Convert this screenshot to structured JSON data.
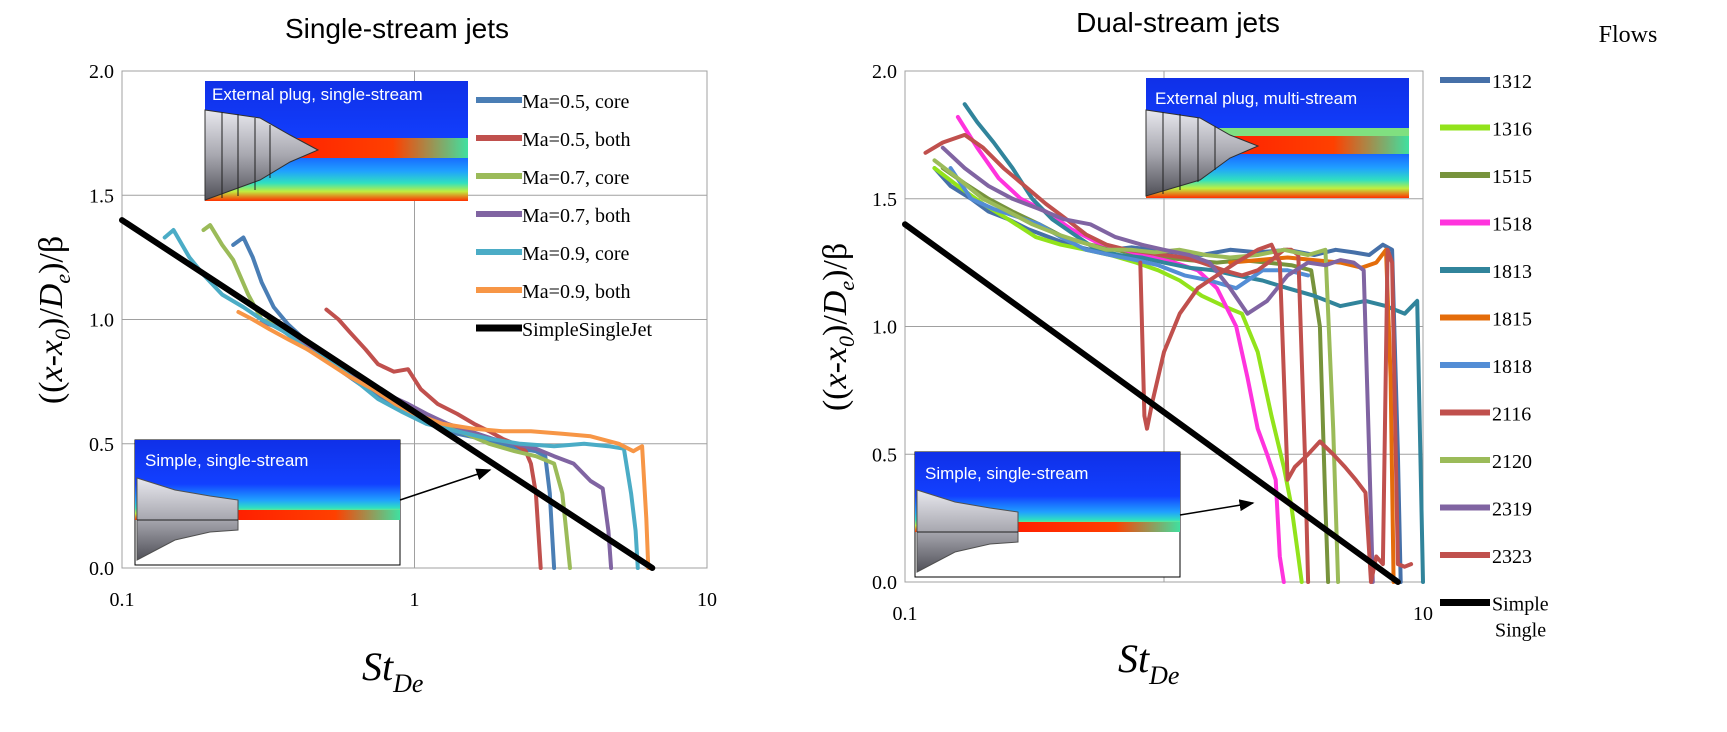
{
  "chart_data": [
    {
      "type": "line",
      "title": "Single-stream jets",
      "xlabel_main": "St",
      "xlabel_sub": "De",
      "ylabel": "((x-x0)/De)/β",
      "xscale": "log",
      "xlim": [
        0.1,
        10
      ],
      "ylim": [
        0,
        2
      ],
      "x_ticks": [
        "0.1",
        "1",
        "10"
      ],
      "y_ticks": [
        "0.0",
        "0.5",
        "1.0",
        "1.5",
        "2.0"
      ],
      "grid": true,
      "legend_position": "top-right",
      "insets": [
        {
          "label": "External plug, single-stream",
          "position": "top-center"
        },
        {
          "label": "Simple, single-stream",
          "position": "bottom-left"
        }
      ],
      "series": [
        {
          "name": "Ma=0.5, core",
          "color": "#4a7eb5",
          "x": [
            0.24,
            0.26,
            0.28,
            0.3,
            0.33,
            0.37,
            0.42,
            0.48,
            0.55,
            0.65,
            0.78,
            0.95,
            1.15,
            1.4,
            1.7,
            2.0,
            2.3,
            2.6,
            2.8,
            2.9,
            2.95,
            3.0
          ],
          "y": [
            1.3,
            1.33,
            1.25,
            1.15,
            1.05,
            0.98,
            0.92,
            0.85,
            0.8,
            0.74,
            0.68,
            0.62,
            0.58,
            0.54,
            0.52,
            0.5,
            0.48,
            0.47,
            0.45,
            0.3,
            0.15,
            0.0
          ]
        },
        {
          "name": "Ma=0.5, both",
          "color": "#c0504d",
          "x": [
            0.5,
            0.55,
            0.6,
            0.68,
            0.75,
            0.85,
            0.95,
            1.05,
            1.2,
            1.4,
            1.6,
            1.8,
            2.0,
            2.2,
            2.4,
            2.5,
            2.6,
            2.65,
            2.7
          ],
          "y": [
            1.04,
            1.0,
            0.95,
            0.88,
            0.82,
            0.79,
            0.8,
            0.72,
            0.66,
            0.62,
            0.58,
            0.55,
            0.52,
            0.5,
            0.47,
            0.42,
            0.3,
            0.15,
            0.0
          ]
        },
        {
          "name": "Ma=0.7, core",
          "color": "#9bbb59",
          "x": [
            0.19,
            0.2,
            0.22,
            0.24,
            0.27,
            0.3,
            0.34,
            0.4,
            0.48,
            0.58,
            0.7,
            0.85,
            1.0,
            1.2,
            1.5,
            1.8,
            2.2,
            2.6,
            3.0,
            3.2,
            3.3,
            3.4
          ],
          "y": [
            1.36,
            1.38,
            1.3,
            1.24,
            1.1,
            1.0,
            0.98,
            0.92,
            0.85,
            0.8,
            0.73,
            0.68,
            0.64,
            0.58,
            0.54,
            0.5,
            0.47,
            0.45,
            0.42,
            0.3,
            0.15,
            0.0
          ]
        },
        {
          "name": "Ma=0.7, both",
          "color": "#8064a2",
          "x": [
            0.3,
            0.34,
            0.38,
            0.43,
            0.5,
            0.58,
            0.68,
            0.8,
            0.95,
            1.1,
            1.3,
            1.55,
            1.85,
            2.2,
            2.6,
            3.0,
            3.5,
            4.0,
            4.4,
            4.6,
            4.7
          ],
          "y": [
            0.99,
            0.97,
            0.93,
            0.9,
            0.85,
            0.8,
            0.75,
            0.7,
            0.66,
            0.62,
            0.58,
            0.55,
            0.52,
            0.5,
            0.48,
            0.45,
            0.42,
            0.35,
            0.32,
            0.15,
            0.0
          ]
        },
        {
          "name": "Ma=0.9, core",
          "color": "#4bacc6",
          "x": [
            0.14,
            0.15,
            0.17,
            0.19,
            0.22,
            0.26,
            0.3,
            0.36,
            0.43,
            0.52,
            0.62,
            0.75,
            0.9,
            1.1,
            1.4,
            1.8,
            2.3,
            3.0,
            3.8,
            4.6,
            5.2,
            5.5,
            5.7,
            5.8
          ],
          "y": [
            1.33,
            1.36,
            1.25,
            1.18,
            1.1,
            1.05,
            1.0,
            0.95,
            0.88,
            0.83,
            0.76,
            0.68,
            0.63,
            0.58,
            0.55,
            0.52,
            0.5,
            0.49,
            0.5,
            0.49,
            0.48,
            0.3,
            0.15,
            0.0
          ]
        },
        {
          "name": "Ma=0.9, both",
          "color": "#f79646",
          "x": [
            0.25,
            0.28,
            0.32,
            0.37,
            0.43,
            0.5,
            0.6,
            0.72,
            0.86,
            1.0,
            1.25,
            1.6,
            2.0,
            2.5,
            3.2,
            4.0,
            5.0,
            5.6,
            6.0,
            6.2,
            6.3
          ],
          "y": [
            1.03,
            1.0,
            0.96,
            0.92,
            0.88,
            0.83,
            0.77,
            0.72,
            0.66,
            0.62,
            0.58,
            0.56,
            0.55,
            0.55,
            0.54,
            0.53,
            0.5,
            0.47,
            0.49,
            0.2,
            0.0
          ]
        },
        {
          "name": "SimpleSingleJet",
          "color": "#000000",
          "x": [
            0.1,
            6.5
          ],
          "y": [
            1.4,
            0.0
          ]
        }
      ]
    },
    {
      "type": "line",
      "title": "Dual-stream jets",
      "xlabel_main": "St",
      "xlabel_sub": "De",
      "ylabel": "((x-x0)/De)/β",
      "xscale": "log",
      "xlim": [
        0.1,
        10
      ],
      "ylim": [
        0,
        2
      ],
      "x_ticks": [
        "0.1",
        "10"
      ],
      "y_ticks": [
        "0.0",
        "0.5",
        "1.0",
        "1.5",
        "2.0"
      ],
      "grid": true,
      "legend_title": "Flows",
      "legend_position": "right",
      "insets": [
        {
          "label": "External plug, multi-stream",
          "position": "top-right"
        },
        {
          "label": "Simple, single-stream",
          "position": "bottom-left"
        }
      ],
      "series": [
        {
          "name": "1312",
          "color": "#4670a8",
          "x": [
            0.13,
            0.15,
            0.18,
            0.21,
            0.25,
            0.3,
            0.36,
            0.43,
            0.52,
            0.62,
            0.75,
            0.9,
            1.1,
            1.4,
            1.8,
            2.3,
            3.0,
            3.8,
            4.6,
            5.4,
            6.2,
            7.0,
            7.6,
            8.0,
            8.2
          ],
          "y": [
            1.62,
            1.55,
            1.5,
            1.45,
            1.42,
            1.38,
            1.35,
            1.32,
            1.3,
            1.3,
            1.31,
            1.3,
            1.29,
            1.28,
            1.3,
            1.29,
            1.3,
            1.28,
            1.3,
            1.29,
            1.28,
            1.32,
            1.3,
            0.5,
            0.0
          ]
        },
        {
          "name": "1316",
          "color": "#92e31b",
          "x": [
            0.13,
            0.16,
            0.2,
            0.25,
            0.32,
            0.4,
            0.5,
            0.62,
            0.78,
            0.95,
            1.15,
            1.4,
            1.7,
            2.0,
            2.3,
            2.6,
            2.9,
            3.1,
            3.3,
            3.4
          ],
          "y": [
            1.62,
            1.55,
            1.48,
            1.42,
            1.35,
            1.32,
            1.3,
            1.28,
            1.25,
            1.22,
            1.18,
            1.12,
            1.08,
            1.05,
            0.9,
            0.65,
            0.45,
            0.3,
            0.1,
            0.0
          ]
        },
        {
          "name": "1515",
          "color": "#77933c",
          "x": [
            0.14,
            0.17,
            0.21,
            0.26,
            0.33,
            0.41,
            0.52,
            0.65,
            0.82,
            1.0,
            1.25,
            1.6,
            2.0,
            2.5,
            3.1,
            3.7,
            4.0,
            4.2,
            4.3
          ],
          "y": [
            1.62,
            1.56,
            1.5,
            1.45,
            1.4,
            1.35,
            1.32,
            1.3,
            1.28,
            1.27,
            1.26,
            1.25,
            1.26,
            1.25,
            1.24,
            1.22,
            1.0,
            0.3,
            0.0
          ]
        },
        {
          "name": "1518",
          "color": "#ff33dd",
          "x": [
            0.16,
            0.19,
            0.23,
            0.28,
            0.35,
            0.44,
            0.55,
            0.7,
            0.9,
            1.1,
            1.35,
            1.6,
            1.9,
            2.1,
            2.3,
            2.5,
            2.7,
            2.8,
            2.9
          ],
          "y": [
            1.82,
            1.7,
            1.58,
            1.5,
            1.45,
            1.38,
            1.33,
            1.3,
            1.27,
            1.25,
            1.22,
            1.15,
            1.0,
            0.8,
            0.6,
            0.5,
            0.4,
            0.1,
            0.0
          ]
        },
        {
          "name": "1813",
          "color": "#31849b",
          "x": [
            0.17,
            0.19,
            0.22,
            0.26,
            0.31,
            0.37,
            0.45,
            0.55,
            0.67,
            0.82,
            1.0,
            1.25,
            1.55,
            1.9,
            2.4,
            3.0,
            3.8,
            4.8,
            6.0,
            7.2,
            8.5,
            9.5,
            10
          ],
          "y": [
            1.87,
            1.8,
            1.72,
            1.62,
            1.5,
            1.42,
            1.36,
            1.3,
            1.28,
            1.27,
            1.25,
            1.23,
            1.22,
            1.2,
            1.18,
            1.15,
            1.12,
            1.08,
            1.1,
            1.08,
            1.05,
            1.1,
            0.0
          ]
        },
        {
          "name": "1815",
          "color": "#e46c0a",
          "x": [
            1.8,
            2.3,
            3.0,
            3.8,
            4.8,
            5.8,
            6.6,
            7.2,
            7.5,
            7.7
          ],
          "y": [
            1.25,
            1.26,
            1.27,
            1.26,
            1.25,
            1.23,
            1.25,
            1.3,
            0.8,
            0.0
          ]
        },
        {
          "name": "1818",
          "color": "#538dd5",
          "x": [
            0.15,
            0.18,
            0.22,
            0.27,
            0.33,
            0.4,
            0.5,
            0.62,
            0.78,
            0.95,
            1.2,
            1.5,
            1.9,
            2.4,
            3.0,
            3.6
          ],
          "y": [
            1.62,
            1.5,
            1.46,
            1.43,
            1.4,
            1.35,
            1.3,
            1.28,
            1.26,
            1.24,
            1.2,
            1.18,
            1.15,
            1.22,
            1.22,
            1.2
          ]
        },
        {
          "name": "2116",
          "color": "#c0504d",
          "x": [
            0.12,
            0.14,
            0.17,
            0.2,
            0.24,
            0.29,
            0.35,
            0.42,
            0.5,
            0.6,
            0.72,
            0.85,
            1.0,
            1.2,
            1.4,
            1.7,
            2.0,
            2.3,
            2.6,
            2.9,
            3.1,
            3.3,
            3.5,
            3.6
          ],
          "y": [
            1.68,
            1.72,
            1.75,
            1.7,
            1.62,
            1.55,
            1.48,
            1.42,
            1.36,
            1.32,
            1.3,
            1.29,
            1.28,
            1.27,
            1.25,
            1.22,
            1.2,
            1.22,
            1.26,
            1.3,
            1.3,
            1.28,
            0.5,
            0.0
          ]
        },
        {
          "name": "2120",
          "color": "#9bbb59",
          "x": [
            0.13,
            0.16,
            0.2,
            0.25,
            0.31,
            0.39,
            0.48,
            0.6,
            0.75,
            0.92,
            1.15,
            1.45,
            1.8,
            2.3,
            2.9,
            3.6,
            4.2,
            4.5,
            4.7
          ],
          "y": [
            1.65,
            1.58,
            1.5,
            1.45,
            1.4,
            1.36,
            1.33,
            1.3,
            1.3,
            1.29,
            1.3,
            1.28,
            1.27,
            1.28,
            1.3,
            1.28,
            1.3,
            0.6,
            0.0
          ]
        },
        {
          "name": "2319",
          "color": "#8064a2",
          "x": [
            0.14,
            0.17,
            0.21,
            0.26,
            0.33,
            0.41,
            0.52,
            0.65,
            0.82,
            1.0,
            1.25,
            1.5,
            1.8,
            2.1,
            2.5,
            3.0,
            3.6,
            4.2,
            4.8,
            5.4,
            5.9,
            6.2,
            6.4
          ],
          "y": [
            1.7,
            1.62,
            1.55,
            1.5,
            1.46,
            1.42,
            1.4,
            1.35,
            1.32,
            1.3,
            1.28,
            1.25,
            1.15,
            1.05,
            1.1,
            1.2,
            1.25,
            1.24,
            1.26,
            1.25,
            1.22,
            0.5,
            0.0
          ]
        },
        {
          "name": "2323",
          "color": "#c0504d",
          "x": [
            0.81,
            0.84,
            0.86,
            0.9,
            1.0,
            1.15,
            1.35,
            1.6,
            1.9,
            2.3,
            2.6,
            2.8,
            3.0,
            3.2,
            3.6,
            4.0,
            4.5,
            5.0,
            5.5,
            6.0,
            6.3,
            6.6,
            7.0,
            7.3,
            7.6,
            8.0,
            8.5,
            9.0
          ],
          "y": [
            1.25,
            0.65,
            0.6,
            0.7,
            0.9,
            1.05,
            1.15,
            1.2,
            1.25,
            1.3,
            1.32,
            1.25,
            0.4,
            0.45,
            0.5,
            0.55,
            0.5,
            0.45,
            0.4,
            0.35,
            0.0,
            0.1,
            0.07,
            1.3,
            1.25,
            0.07,
            0.06,
            0.07
          ]
        },
        {
          "name": "Simple Single",
          "color": "#000000",
          "x": [
            0.1,
            8.0
          ],
          "y": [
            1.4,
            0.0
          ]
        }
      ]
    }
  ]
}
